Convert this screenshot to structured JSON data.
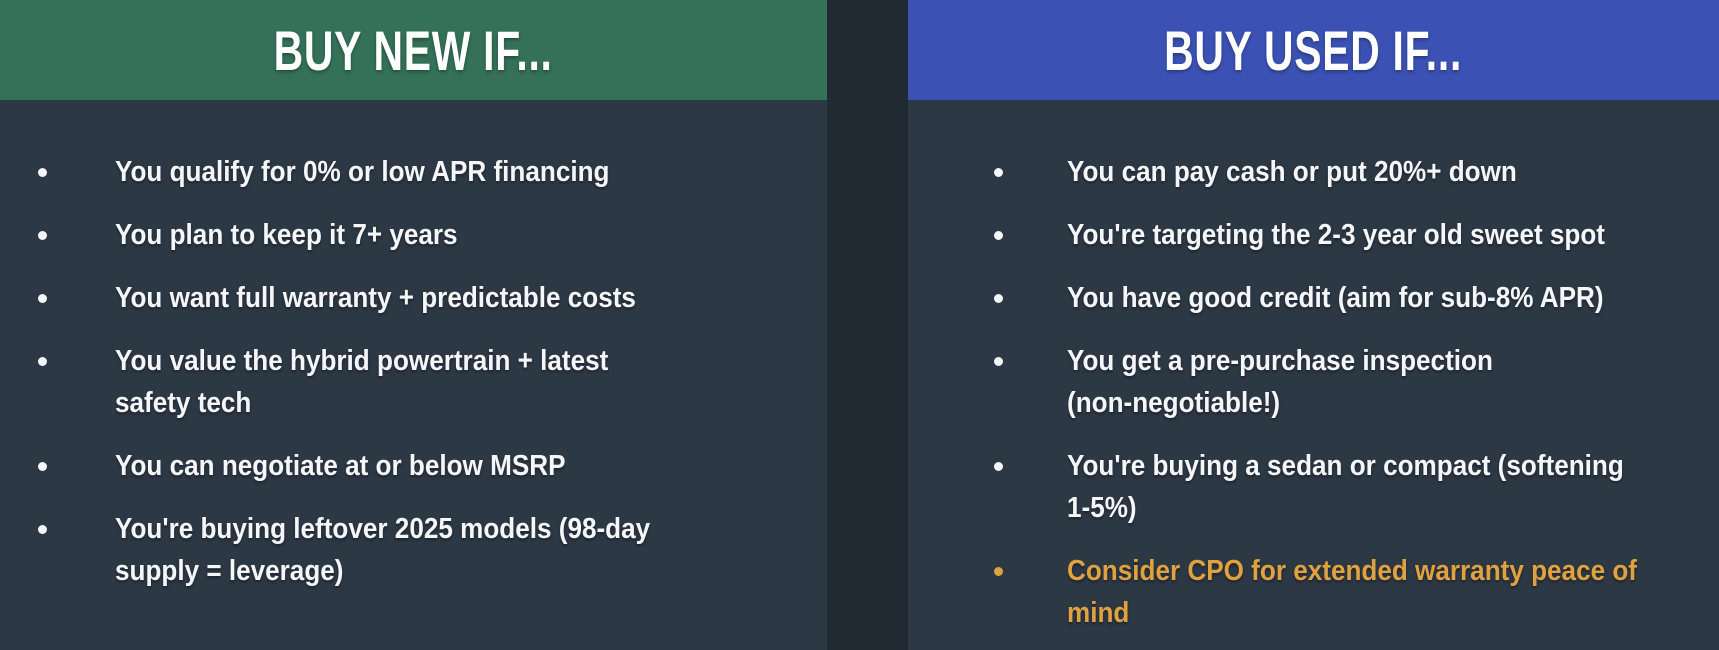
{
  "colors": {
    "background": "#212933",
    "panel": "#2d3845",
    "header_green": "#347158",
    "header_blue": "#3b52b4",
    "text": "#f4f6f7",
    "highlight_orange": "#dfa23f"
  },
  "panels": [
    {
      "id": "buy-new",
      "title": "BUY NEW IF...",
      "items": [
        {
          "text": "You qualify for 0% or low APR financing"
        },
        {
          "text": "You plan to keep it 7+ years"
        },
        {
          "text": "You want full warranty + predictable costs"
        },
        {
          "text": "You value the hybrid powertrain + latest\nsafety tech"
        },
        {
          "text": "You can negotiate at or below MSRP"
        },
        {
          "text": "You're buying leftover 2025 models (98-day\nsupply = leverage)"
        }
      ]
    },
    {
      "id": "buy-used",
      "title": "BUY USED IF...",
      "items": [
        {
          "text": "You can pay cash or put 20%+ down"
        },
        {
          "text": "You're targeting the 2-3 year old sweet spot"
        },
        {
          "text": "You have good credit (aim for sub-8% APR)"
        },
        {
          "text": "You get a pre-purchase inspection\n(non-negotiable!)"
        },
        {
          "text": "You're buying a sedan or compact (softening\n1-5%)"
        },
        {
          "text": "Consider CPO for extended warranty peace of\nmind",
          "highlight": true
        }
      ]
    }
  ]
}
